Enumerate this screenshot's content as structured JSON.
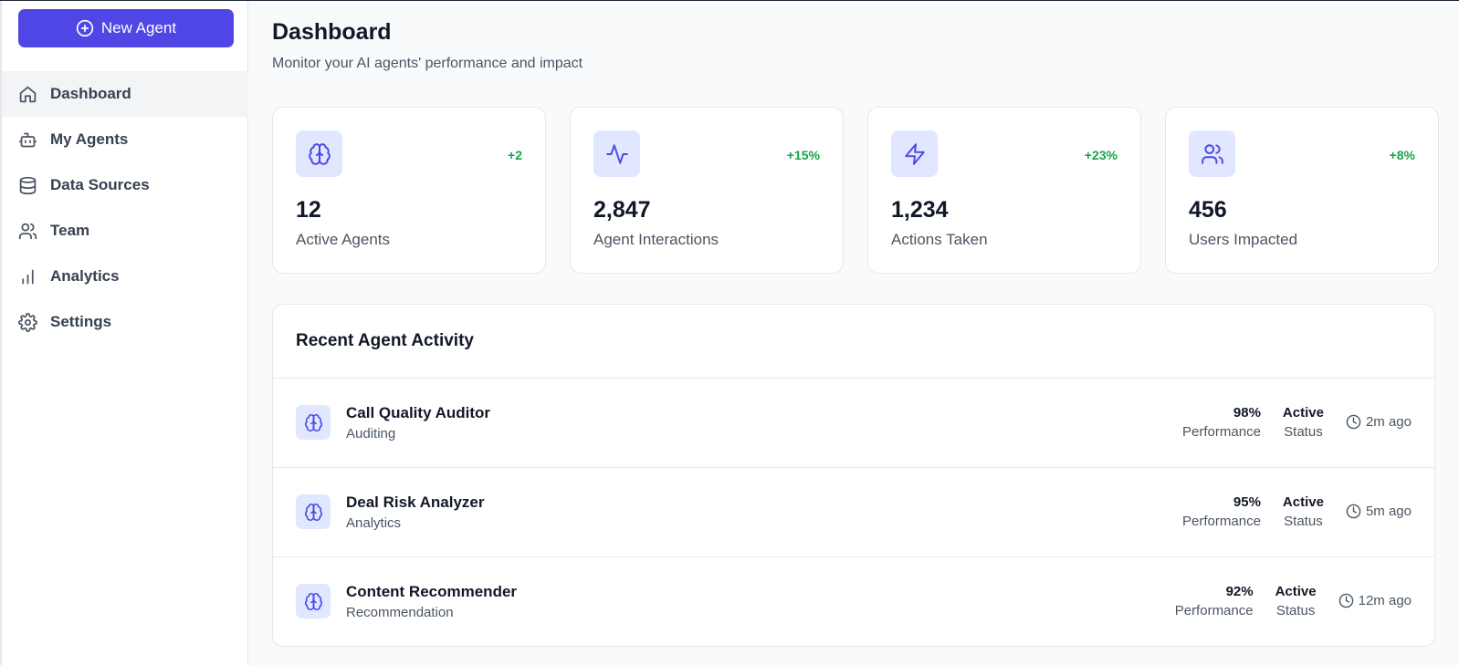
{
  "sidebar": {
    "new_agent_label": "New Agent",
    "items": [
      {
        "label": "Dashboard",
        "icon": "home-icon",
        "active": true
      },
      {
        "label": "My Agents",
        "icon": "bot-icon"
      },
      {
        "label": "Data Sources",
        "icon": "database-icon"
      },
      {
        "label": "Team",
        "icon": "users-icon"
      },
      {
        "label": "Analytics",
        "icon": "bar-chart-icon"
      },
      {
        "label": "Settings",
        "icon": "gear-icon"
      }
    ]
  },
  "header": {
    "title": "Dashboard",
    "subtitle": "Monitor your AI agents' performance and impact"
  },
  "stats": [
    {
      "value": "12",
      "label": "Active Agents",
      "change": "+2",
      "icon": "brain-icon"
    },
    {
      "value": "2,847",
      "label": "Agent Interactions",
      "change": "+15%",
      "icon": "activity-icon"
    },
    {
      "value": "1,234",
      "label": "Actions Taken",
      "change": "+23%",
      "icon": "lightning-icon"
    },
    {
      "value": "456",
      "label": "Users Impacted",
      "change": "+8%",
      "icon": "users-icon"
    }
  ],
  "activity": {
    "title": "Recent Agent Activity",
    "rows": [
      {
        "name": "Call Quality Auditor",
        "type": "Auditing",
        "performance": "98%",
        "performance_label": "Performance",
        "status": "Active",
        "status_label": "Status",
        "time": "2m ago"
      },
      {
        "name": "Deal Risk Analyzer",
        "type": "Analytics",
        "performance": "95%",
        "performance_label": "Performance",
        "status": "Active",
        "status_label": "Status",
        "time": "5m ago"
      },
      {
        "name": "Content Recommender",
        "type": "Recommendation",
        "performance": "92%",
        "performance_label": "Performance",
        "status": "Active",
        "status_label": "Status",
        "time": "12m ago"
      }
    ]
  },
  "colors": {
    "accent": "#4f46e5",
    "accent_light": "#e0e7ff",
    "positive": "#16a34a"
  }
}
